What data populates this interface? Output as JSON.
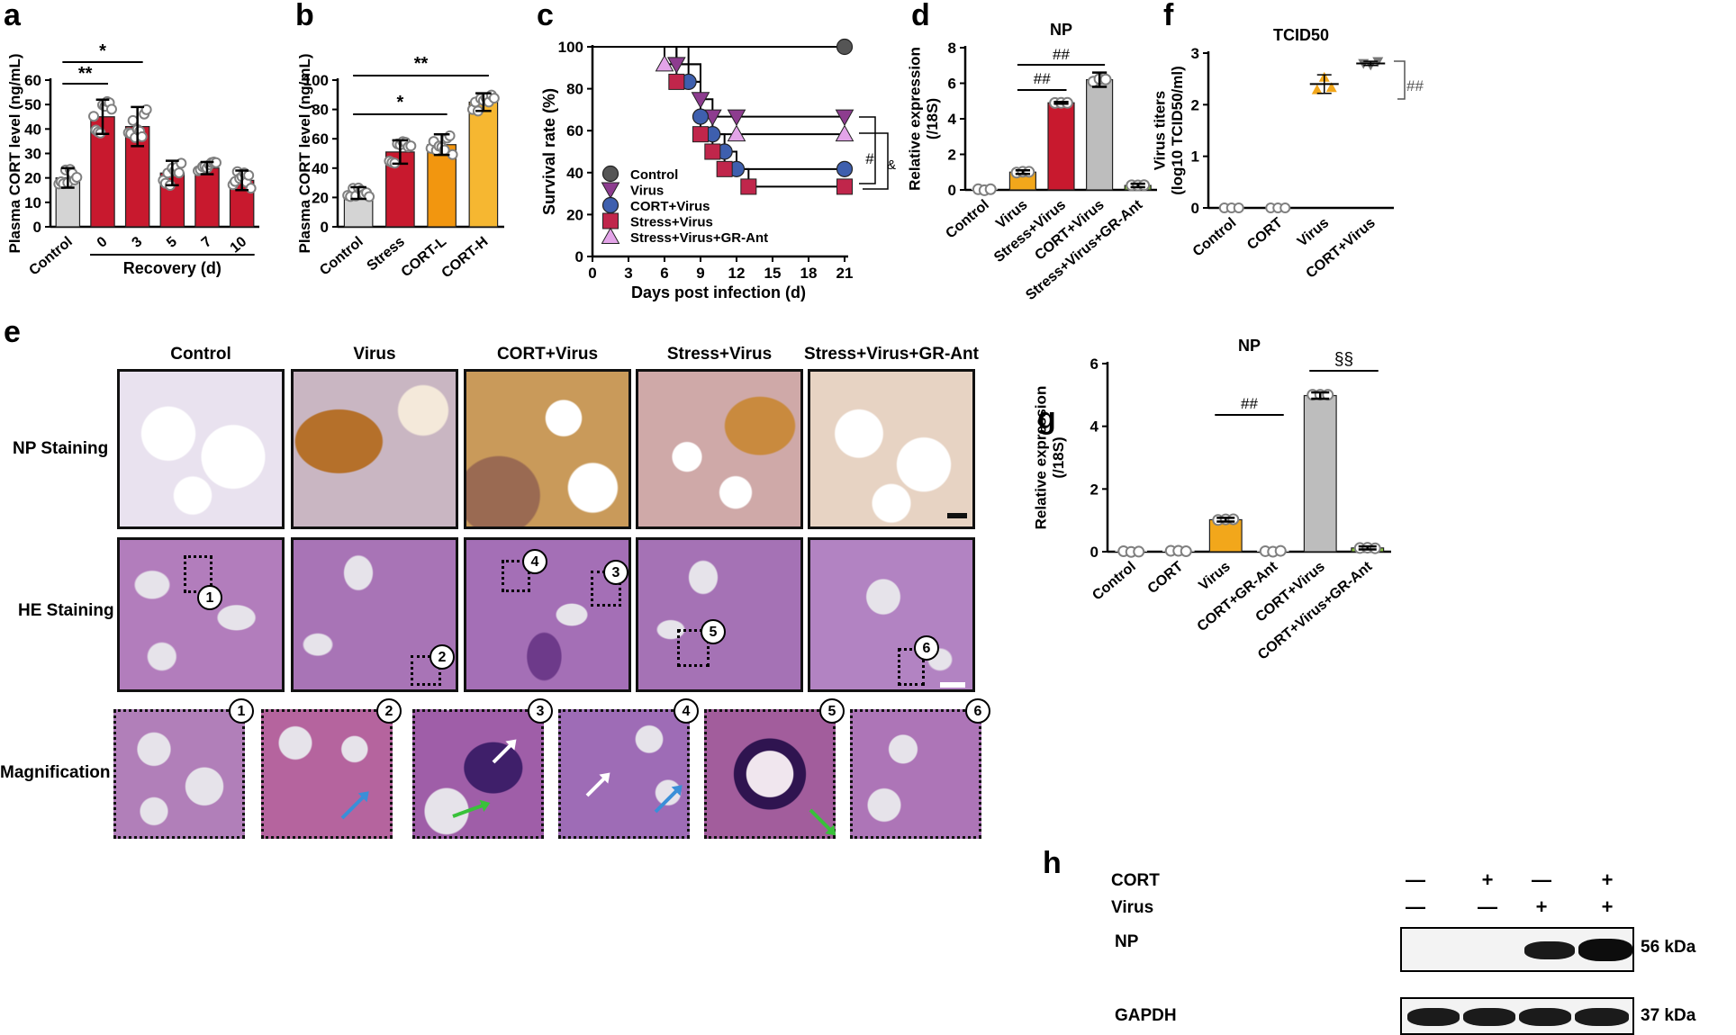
{
  "panels": {
    "a": "a",
    "b": "b",
    "c": "c",
    "d": "d",
    "e": "e",
    "f": "f",
    "g": "g",
    "h": "h"
  },
  "chart_data": [
    {
      "id": "a",
      "type": "bar",
      "ylabel": "Plasma CORT level (ng/mL)",
      "xgroup_label": "Recovery (d)",
      "categories": [
        "Control",
        "0",
        "3",
        "5",
        "7",
        "10"
      ],
      "values": [
        20,
        45,
        41,
        22,
        24,
        19
      ],
      "errors": [
        4,
        7,
        8,
        5,
        2.5,
        4
      ],
      "colors": [
        "#d4d4d4",
        "#c8192e",
        "#c8192e",
        "#c8192e",
        "#c8192e",
        "#c8192e"
      ],
      "ylim": [
        0,
        60
      ],
      "yticks": [
        0,
        10,
        20,
        30,
        40,
        50,
        60
      ],
      "sig": [
        {
          "from": 0,
          "to": 1,
          "label": "**"
        },
        {
          "from": 0,
          "to": 2,
          "label": "*"
        }
      ]
    },
    {
      "id": "b",
      "type": "bar",
      "ylabel": "Plasma CORT level (ng/mL)",
      "categories": [
        "Control",
        "Stress",
        "CORT-L",
        "CORT-H"
      ],
      "values": [
        23,
        51,
        56,
        85
      ],
      "errors": [
        4,
        8,
        7,
        6
      ],
      "colors": [
        "#d4d4d4",
        "#c8192e",
        "#f2960f",
        "#f6b731"
      ],
      "ylim": [
        0,
        100
      ],
      "yticks": [
        0,
        20,
        40,
        60,
        80,
        100
      ],
      "sig": [
        {
          "from": 0,
          "to": 2,
          "label": "*"
        },
        {
          "from": 0,
          "to": 3,
          "label": "**"
        }
      ]
    },
    {
      "id": "c",
      "type": "line",
      "xlabel": "Days post infection (d)",
      "ylabel": "Survival rate (%)",
      "xlim": [
        0,
        21
      ],
      "ylim": [
        0,
        100
      ],
      "xticks": [
        0,
        3,
        6,
        9,
        12,
        15,
        18,
        21
      ],
      "yticks": [
        0,
        20,
        40,
        60,
        80,
        100
      ],
      "series": [
        {
          "name": "Control",
          "color": "#555555",
          "marker": "circle",
          "steps": [
            [
              0,
              100
            ],
            [
              21,
              100
            ]
          ],
          "markers": [
            [
              21,
              100
            ]
          ]
        },
        {
          "name": "Virus",
          "color": "#8d3c8f",
          "marker": "tri-down",
          "steps": [
            [
              0,
              100
            ],
            [
              7,
              100
            ],
            [
              7,
              91.7
            ],
            [
              9,
              91.7
            ],
            [
              9,
              75
            ],
            [
              10,
              75
            ],
            [
              10,
              66.7
            ],
            [
              21,
              66.7
            ]
          ],
          "markers": [
            [
              7,
              91.7
            ],
            [
              9,
              75
            ],
            [
              10,
              66.7
            ],
            [
              12,
              66.7
            ],
            [
              21,
              66.7
            ]
          ]
        },
        {
          "name": "CORT+Virus",
          "color": "#3e5fae",
          "marker": "circle",
          "steps": [
            [
              0,
              100
            ],
            [
              8,
              100
            ],
            [
              8,
              83.3
            ],
            [
              9,
              83.3
            ],
            [
              9,
              66.7
            ],
            [
              10,
              66.7
            ],
            [
              10,
              58.3
            ],
            [
              11,
              58.3
            ],
            [
              11,
              50
            ],
            [
              12,
              50
            ],
            [
              12,
              41.7
            ],
            [
              21,
              41.7
            ]
          ],
          "markers": [
            [
              8,
              83.3
            ],
            [
              9,
              66.7
            ],
            [
              10,
              58.3
            ],
            [
              11,
              50
            ],
            [
              12,
              41.7
            ],
            [
              21,
              41.7
            ]
          ]
        },
        {
          "name": "Stress+Virus",
          "color": "#c0264b",
          "marker": "square",
          "steps": [
            [
              0,
              100
            ],
            [
              7,
              100
            ],
            [
              7,
              83.3
            ],
            [
              9,
              83.3
            ],
            [
              9,
              58.3
            ],
            [
              10,
              58.3
            ],
            [
              10,
              50
            ],
            [
              11,
              50
            ],
            [
              11,
              41.7
            ],
            [
              13,
              41.7
            ],
            [
              13,
              33.3
            ],
            [
              21,
              33.3
            ]
          ],
          "markers": [
            [
              7,
              83.3
            ],
            [
              9,
              58.3
            ],
            [
              10,
              50
            ],
            [
              11,
              41.7
            ],
            [
              13,
              33.3
            ],
            [
              21,
              33.3
            ]
          ]
        },
        {
          "name": "Stress+Virus+GR-Ant",
          "color": "#e3a4e8",
          "marker": "tri-up",
          "steps": [
            [
              0,
              100
            ],
            [
              6,
              100
            ],
            [
              6,
              91.7
            ],
            [
              9,
              91.7
            ],
            [
              9,
              58.3
            ],
            [
              21,
              58.3
            ]
          ],
          "markers": [
            [
              6,
              91.7
            ],
            [
              12,
              58.3
            ],
            [
              21,
              58.3
            ]
          ]
        }
      ],
      "sig": [
        "#",
        "&"
      ]
    },
    {
      "id": "d",
      "type": "bar",
      "title": "NP",
      "ylabel": "Relative expression (/18S)",
      "categories": [
        "Control",
        "Virus",
        "Stress+Virus",
        "CORT+Virus",
        "Stress+Virus+GR-Ant"
      ],
      "values": [
        0,
        1,
        4.9,
        6.2,
        0.25
      ],
      "errors": [
        0,
        0.1,
        0.05,
        0.4,
        0.1
      ],
      "colors": [
        "#d4d4d4",
        "#f2a71b",
        "#c8192e",
        "#bdbdbd",
        "#8bc540"
      ],
      "ylim": [
        0,
        8
      ],
      "yticks": [
        0,
        2,
        4,
        6,
        8
      ],
      "sig": [
        {
          "from": 1,
          "to": 2,
          "label": "##"
        },
        {
          "from": 1,
          "to": 3,
          "label": "##"
        }
      ]
    },
    {
      "id": "f",
      "type": "scatter",
      "title": "TCID50",
      "ylabel": "Virus titers (log10 TCID50/ml)",
      "categories": [
        "Control",
        "CORT",
        "Virus",
        "CORT+Virus"
      ],
      "values": [
        0,
        0,
        2.4,
        2.8
      ],
      "errors": [
        0,
        0,
        0.18,
        0.04
      ],
      "colors": [
        "#777777",
        "#777777",
        "#f2a71b",
        "#777777"
      ],
      "ylim": [
        0,
        3
      ],
      "yticks": [
        0,
        1,
        2,
        3
      ],
      "sig": [
        {
          "label": "##"
        }
      ]
    },
    {
      "id": "g",
      "type": "bar",
      "title": "NP",
      "ylabel": "Relative expression (/18S)",
      "categories": [
        "Control",
        "CORT",
        "Virus",
        "CORT+GR-Ant",
        "CORT+Virus",
        "CORT+Virus+GR-Ant"
      ],
      "values": [
        0,
        0,
        1.02,
        0,
        4.98,
        0.12
      ],
      "errors": [
        0,
        0,
        0.06,
        0,
        0.1,
        0.05
      ],
      "colors": [
        "#d4d4d4",
        "#d4d4d4",
        "#f2a71b",
        "#d4d4d4",
        "#bdbdbd",
        "#8bc540"
      ],
      "ylim": [
        0,
        6
      ],
      "yticks": [
        0,
        2,
        4,
        6
      ],
      "sig": [
        {
          "from": 2,
          "to": 3,
          "label": "##"
        },
        {
          "from": 4,
          "to": 5,
          "label": "§§"
        }
      ]
    }
  ],
  "histology": {
    "columns": [
      "Control",
      "Virus",
      "CORT+Virus",
      "Stress+Virus",
      "Stress+Virus+GR-Ant"
    ],
    "rows": [
      "NP Staining",
      "HE Staining",
      "Magnification"
    ],
    "markers": [
      "1",
      "2",
      "3",
      "4",
      "5",
      "6"
    ]
  },
  "blot": {
    "row_labels": [
      "CORT",
      "Virus"
    ],
    "cort_signs": [
      "—",
      "+",
      "—",
      "+"
    ],
    "virus_signs": [
      "—",
      "—",
      "+",
      "+"
    ],
    "bands": [
      "NP",
      "GAPDH"
    ],
    "sizes": [
      "56 kDa",
      "37 kDa"
    ]
  }
}
